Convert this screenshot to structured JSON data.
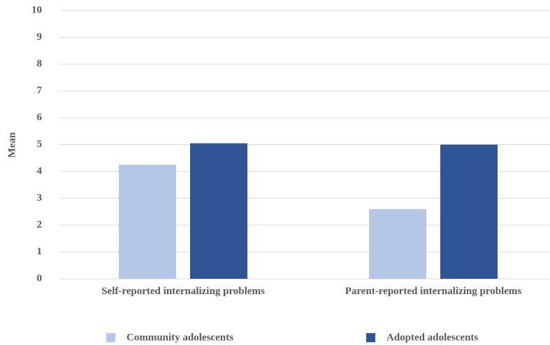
{
  "chart_data": {
    "type": "bar",
    "y_label": "Mean",
    "categories": [
      "Self-reported internalizing problems",
      "Parent-reported internalizing problems"
    ],
    "series": [
      {
        "name": "Community adolescents",
        "color": "#b4c7e7",
        "values": [
          4.25,
          2.6
        ]
      },
      {
        "name": "Adopted adolescents",
        "color": "#2f5597",
        "values": [
          5.05,
          5.0
        ]
      }
    ],
    "ylim": [
      0,
      10
    ],
    "yticks": [
      0,
      1,
      2,
      3,
      4,
      5,
      6,
      7,
      8,
      9,
      10
    ],
    "grid": true,
    "legend": "bottom"
  }
}
